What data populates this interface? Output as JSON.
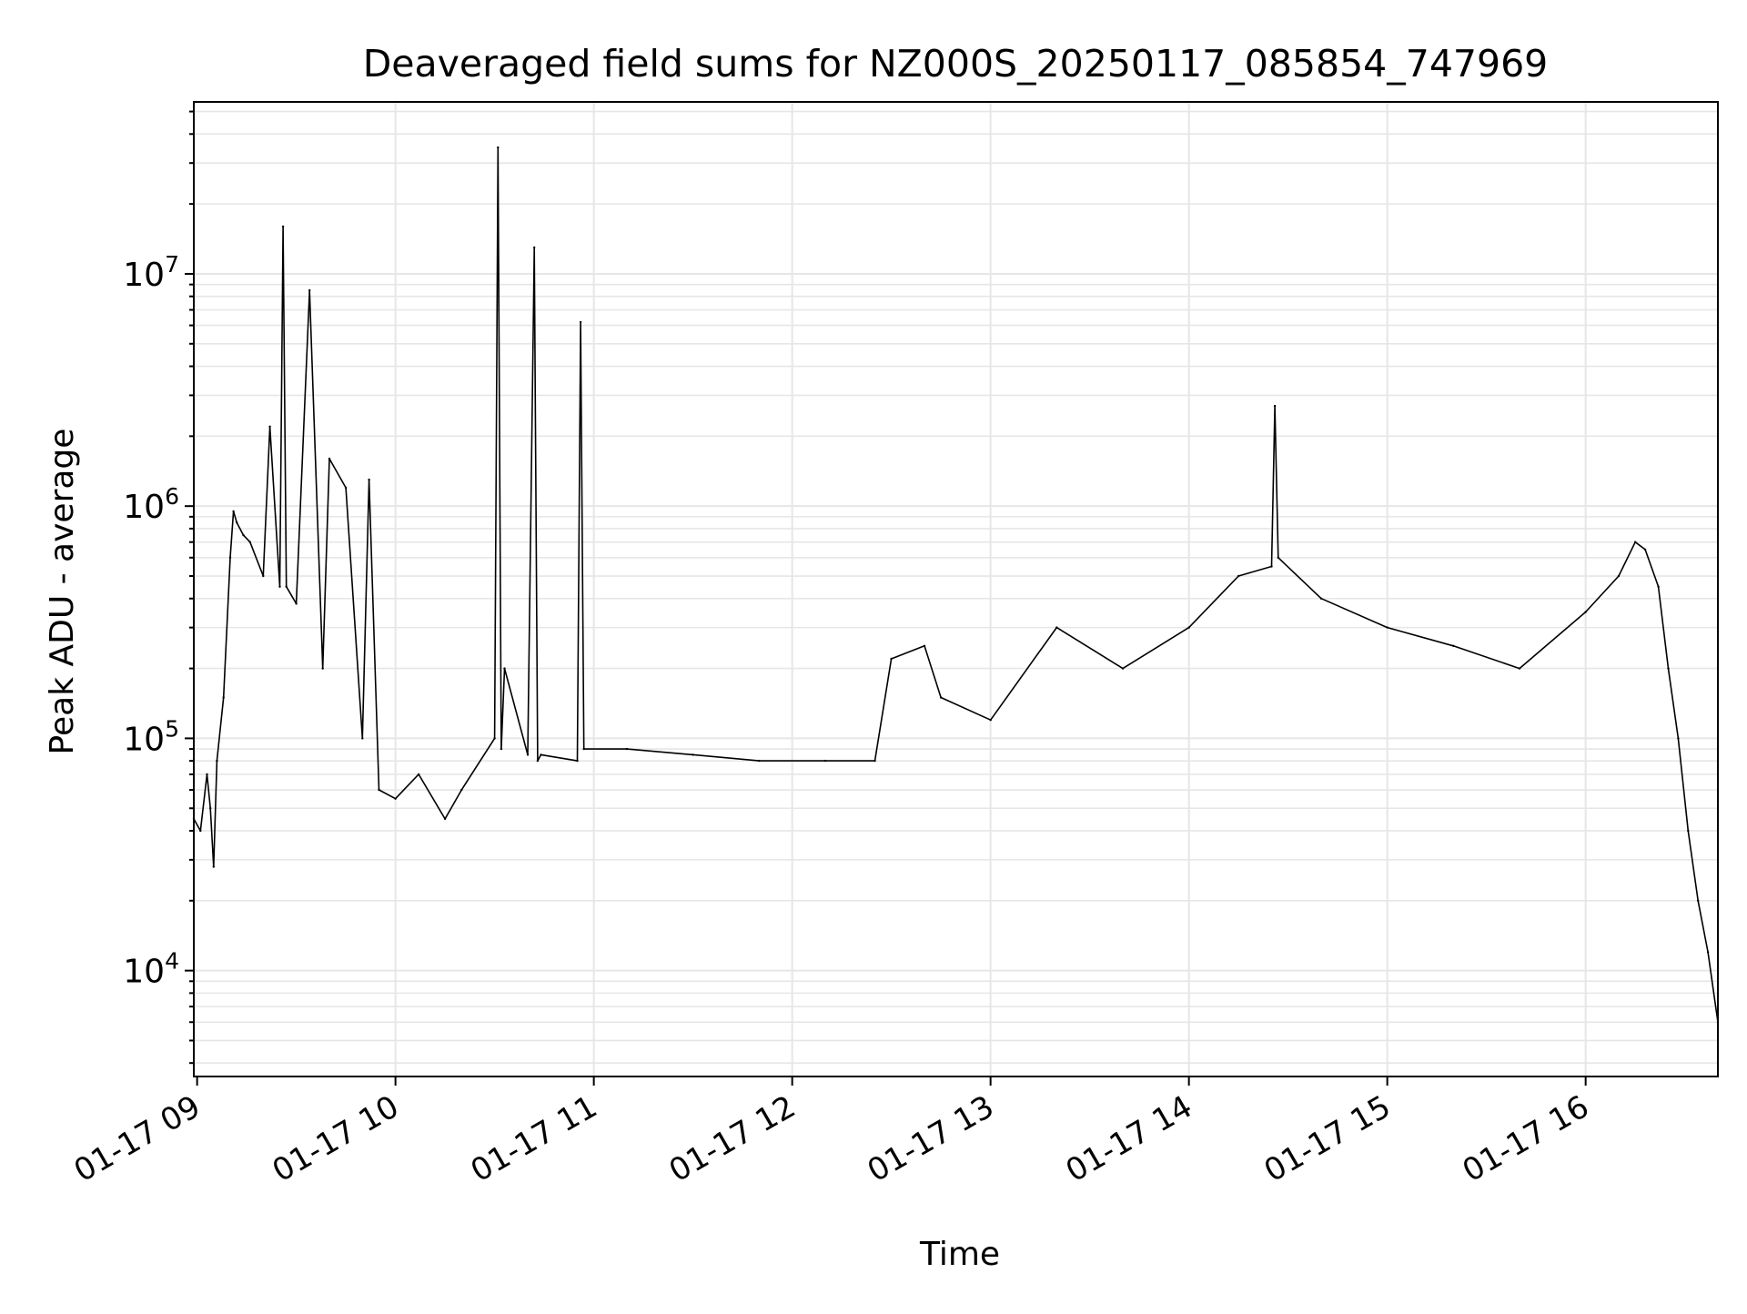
{
  "chart_data": {
    "type": "line",
    "title": "Deaveraged field sums for NZ000S_20250117_085854_747969",
    "xlabel": "Time",
    "ylabel": "Peak ADU - average",
    "yscale": "log",
    "grid": true,
    "x_start": "2025-01-17 08:59",
    "x_end": "2025-01-17 16:40",
    "xlim": [
      "2025-01-17 08:59",
      "2025-01-17 16:40"
    ],
    "ylim": [
      3500,
      55000000
    ],
    "x_ticks": [
      "01-17 09",
      "01-17 10",
      "01-17 11",
      "01-17 12",
      "01-17 13",
      "01-17 14",
      "01-17 15",
      "01-17 16"
    ],
    "y_ticks": [
      {
        "value": 10000,
        "base": "10",
        "exp": "4"
      },
      {
        "value": 100000,
        "base": "10",
        "exp": "5"
      },
      {
        "value": 1000000,
        "base": "10",
        "exp": "6"
      },
      {
        "value": 10000000,
        "base": "10",
        "exp": "7"
      }
    ],
    "line_color": "#000000",
    "grid_color": "#e6e6e6",
    "series": [
      {
        "name": "",
        "x": [
          "2025-01-17 08:59",
          "2025-01-17 09:01",
          "2025-01-17 09:03",
          "2025-01-17 09:04",
          "2025-01-17 09:05",
          "2025-01-17 09:06",
          "2025-01-17 09:08",
          "2025-01-17 09:10",
          "2025-01-17 09:11",
          "2025-01-17 09:12",
          "2025-01-17 09:14",
          "2025-01-17 09:16",
          "2025-01-17 09:20",
          "2025-01-17 09:22",
          "2025-01-17 09:25",
          "2025-01-17 09:26",
          "2025-01-17 09:27",
          "2025-01-17 09:30",
          "2025-01-17 09:34",
          "2025-01-17 09:38",
          "2025-01-17 09:40",
          "2025-01-17 09:45",
          "2025-01-17 09:50",
          "2025-01-17 09:52",
          "2025-01-17 09:55",
          "2025-01-17 10:00",
          "2025-01-17 10:07",
          "2025-01-17 10:15",
          "2025-01-17 10:20",
          "2025-01-17 10:30",
          "2025-01-17 10:31",
          "2025-01-17 10:32",
          "2025-01-17 10:33",
          "2025-01-17 10:40",
          "2025-01-17 10:42",
          "2025-01-17 10:43",
          "2025-01-17 10:44",
          "2025-01-17 10:55",
          "2025-01-17 10:56",
          "2025-01-17 10:57",
          "2025-01-17 11:10",
          "2025-01-17 11:30",
          "2025-01-17 11:50",
          "2025-01-17 12:10",
          "2025-01-17 12:25",
          "2025-01-17 12:30",
          "2025-01-17 12:40",
          "2025-01-17 12:45",
          "2025-01-17 13:00",
          "2025-01-17 13:20",
          "2025-01-17 13:40",
          "2025-01-17 14:00",
          "2025-01-17 14:15",
          "2025-01-17 14:25",
          "2025-01-17 14:26",
          "2025-01-17 14:27",
          "2025-01-17 14:40",
          "2025-01-17 15:00",
          "2025-01-17 15:20",
          "2025-01-17 15:40",
          "2025-01-17 16:00",
          "2025-01-17 16:10",
          "2025-01-17 16:15",
          "2025-01-17 16:18",
          "2025-01-17 16:22",
          "2025-01-17 16:25",
          "2025-01-17 16:28",
          "2025-01-17 16:31",
          "2025-01-17 16:34",
          "2025-01-17 16:37",
          "2025-01-17 16:40"
        ],
        "y": [
          45000,
          40000,
          70000,
          50000,
          28000,
          80000,
          150000,
          600000,
          950000,
          850000,
          750000,
          700000,
          500000,
          2200000,
          450000,
          16000000,
          450000,
          380000,
          8500000,
          200000,
          1600000,
          1200000,
          100000,
          1300000,
          60000,
          55000,
          70000,
          45000,
          60000,
          100000,
          35000000,
          90000,
          200000,
          85000,
          13000000,
          80000,
          85000,
          80000,
          6200000,
          90000,
          90000,
          85000,
          80000,
          80000,
          80000,
          220000,
          250000,
          150000,
          120000,
          300000,
          200000,
          300000,
          500000,
          550000,
          2700000,
          600000,
          400000,
          300000,
          250000,
          200000,
          350000,
          500000,
          700000,
          650000,
          450000,
          200000,
          100000,
          40000,
          20000,
          12000,
          6000
        ]
      }
    ]
  }
}
